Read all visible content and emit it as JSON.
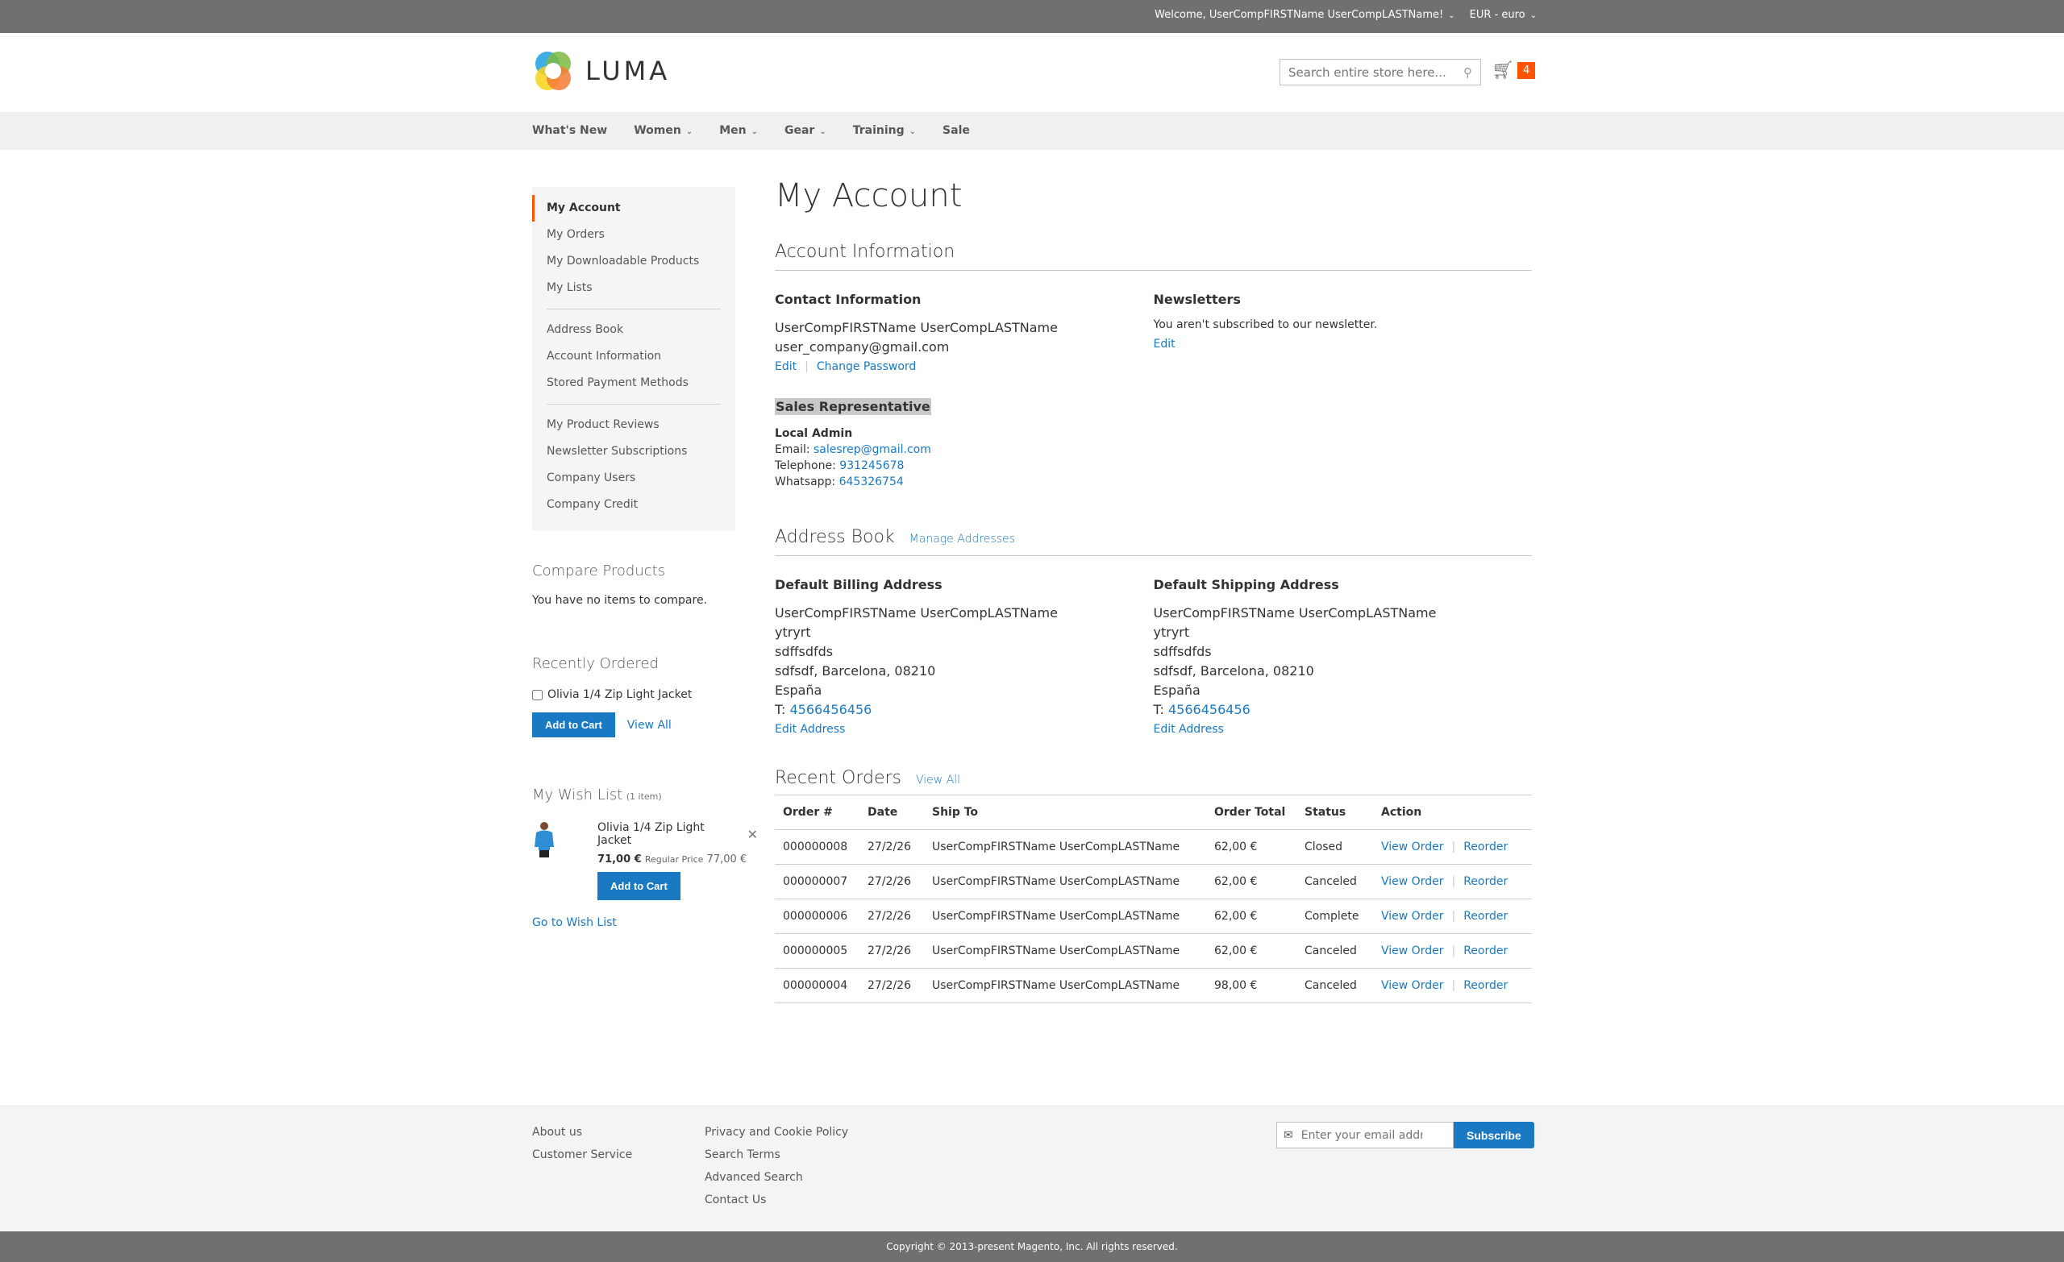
{
  "topbar": {
    "welcome": "Welcome, UserCompFIRSTName UserCompLASTName!",
    "currency": "EUR - euro"
  },
  "header": {
    "logo_text": "LUMA",
    "search_placeholder": "Search entire store here...",
    "cart_count": "4"
  },
  "nav": [
    {
      "label": "What's New",
      "dropdown": false
    },
    {
      "label": "Women",
      "dropdown": true
    },
    {
      "label": "Men",
      "dropdown": true
    },
    {
      "label": "Gear",
      "dropdown": true
    },
    {
      "label": "Training",
      "dropdown": true
    },
    {
      "label": "Sale",
      "dropdown": false
    }
  ],
  "sidebar": {
    "groups": [
      [
        "My Account",
        "My Orders",
        "My Downloadable Products",
        "My Lists"
      ],
      [
        "Address Book",
        "Account Information",
        "Stored Payment Methods"
      ],
      [
        "My Product Reviews",
        "Newsletter Subscriptions",
        "Company Users",
        "Company Credit"
      ]
    ],
    "active": "My Account"
  },
  "compare": {
    "title": "Compare Products",
    "empty": "You have no items to compare."
  },
  "recently_ordered": {
    "title": "Recently Ordered",
    "item": "Olivia 1/4 Zip Light Jacket",
    "add_to_cart": "Add to Cart",
    "view_all": "View All"
  },
  "wishlist": {
    "title": "My Wish List",
    "count": "(1 item)",
    "item": "Olivia 1/4 Zip Light Jacket",
    "price": "71,00 €",
    "regular_label": "Regular Price",
    "regular_price": "77,00 €",
    "add_to_cart": "Add to Cart",
    "go": "Go to Wish List"
  },
  "main": {
    "title": "My Account",
    "account_info": {
      "title": "Account Information",
      "contact": {
        "title": "Contact Information",
        "name": "UserCompFIRSTName UserCompLASTName",
        "email": "user_company@gmail.com",
        "edit": "Edit",
        "change_password": "Change Password"
      },
      "newsletters": {
        "title": "Newsletters",
        "text": "You aren't subscribed to our newsletter.",
        "edit": "Edit"
      },
      "sales_rep": {
        "title": "Sales Representative",
        "name": "Local Admin",
        "email_label": "Email:",
        "email": "salesrep@gmail.com",
        "phone_label": "Telephone:",
        "phone": "931245678",
        "whatsapp_label": "Whatsapp:",
        "whatsapp": "645326754"
      }
    },
    "address_book": {
      "title": "Address Book",
      "manage": "Manage Addresses",
      "billing": {
        "title": "Default Billing Address",
        "lines": [
          "UserCompFIRSTName UserCompLASTName",
          "ytryrt",
          "sdffsdfds",
          "sdfsdf, Barcelona, 08210",
          "España"
        ],
        "phone_label": "T:",
        "phone": "4566456456",
        "edit": "Edit Address"
      },
      "shipping": {
        "title": "Default Shipping Address",
        "lines": [
          "UserCompFIRSTName UserCompLASTName",
          "ytryrt",
          "sdffsdfds",
          "sdfsdf, Barcelona, 08210",
          "España"
        ],
        "phone_label": "T:",
        "phone": "4566456456",
        "edit": "Edit Address"
      }
    },
    "recent_orders": {
      "title": "Recent Orders",
      "view_all": "View All",
      "headers": [
        "Order #",
        "Date",
        "Ship To",
        "Order Total",
        "Status",
        "Action"
      ],
      "view_label": "View Order",
      "reorder_label": "Reorder",
      "rows": [
        [
          "000000008",
          "27/2/26",
          "UserCompFIRSTName UserCompLASTName",
          "62,00 €",
          "Closed"
        ],
        [
          "000000007",
          "27/2/26",
          "UserCompFIRSTName UserCompLASTName",
          "62,00 €",
          "Canceled"
        ],
        [
          "000000006",
          "27/2/26",
          "UserCompFIRSTName UserCompLASTName",
          "62,00 €",
          "Complete"
        ],
        [
          "000000005",
          "27/2/26",
          "UserCompFIRSTName UserCompLASTName",
          "62,00 €",
          "Canceled"
        ],
        [
          "000000004",
          "27/2/26",
          "UserCompFIRSTName UserCompLASTName",
          "98,00 €",
          "Canceled"
        ]
      ]
    }
  },
  "footer": {
    "col1": [
      "About us",
      "Customer Service"
    ],
    "col2": [
      "Privacy and Cookie Policy",
      "Search Terms",
      "Advanced Search",
      "Contact Us"
    ],
    "email_placeholder": "Enter your email address",
    "subscribe": "Subscribe",
    "copyright": "Copyright © 2013-present Magento, Inc. All rights reserved."
  },
  "colors": {
    "accent": "#1979c3",
    "active_marker": "#ff5501",
    "cart_badge": "#ff5501",
    "topbar": "#6e716e"
  }
}
